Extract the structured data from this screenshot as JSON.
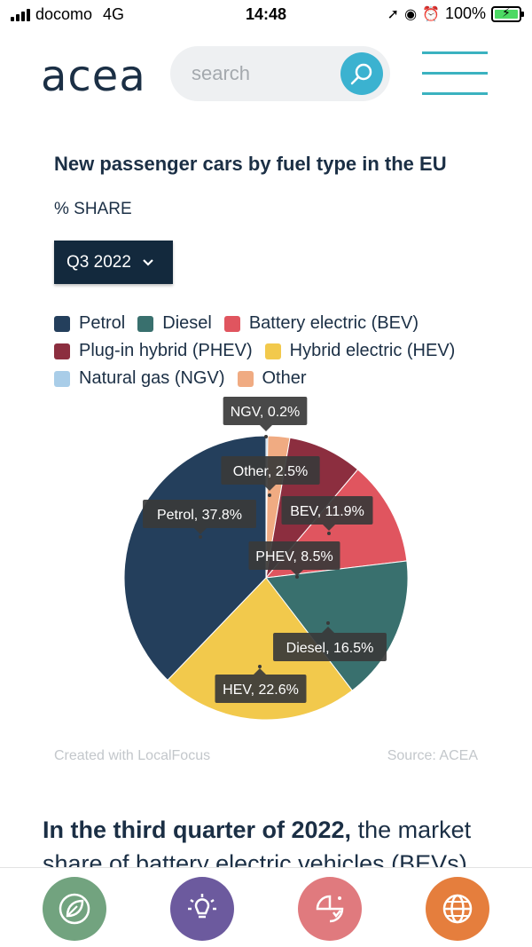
{
  "status_bar": {
    "carrier": "docomo",
    "network": "4G",
    "time": "14:48",
    "battery": "100%"
  },
  "header": {
    "logo": "acea",
    "search_placeholder": "search"
  },
  "chart_data": {
    "type": "pie",
    "title": "New passenger cars by fuel type in the EU",
    "subtitle": "% SHARE",
    "period": "Q3 2022",
    "slices": [
      {
        "name": "Petrol",
        "value": 37.8,
        "color": "#243f5c"
      },
      {
        "name": "Diesel",
        "value": 16.5,
        "color": "#39706e"
      },
      {
        "name": "Battery electric (BEV)",
        "value": 11.9,
        "color": "#e0555f"
      },
      {
        "name": "Plug-in hybrid (PHEV)",
        "value": 8.5,
        "color": "#8c2e3f"
      },
      {
        "name": "Hybrid electric (HEV)",
        "value": 22.6,
        "color": "#f2c94c"
      },
      {
        "name": "Natural gas (NGV)",
        "value": 0.2,
        "color": "#a9cde8"
      },
      {
        "name": "Other",
        "value": 2.5,
        "color": "#f0ab82"
      }
    ],
    "slice_order": [
      "NGV",
      "Other",
      "PHEV",
      "BEV",
      "Diesel",
      "HEV",
      "Petrol"
    ],
    "labels": [
      {
        "key": "NGV",
        "text": "NGV, 0.2%"
      },
      {
        "key": "Other",
        "text": "Other, 2.5%"
      },
      {
        "key": "BEV",
        "text": "BEV, 11.9%"
      },
      {
        "key": "Petrol",
        "text": "Petrol, 37.8%"
      },
      {
        "key": "PHEV",
        "text": "PHEV, 8.5%"
      },
      {
        "key": "Diesel",
        "text": "Diesel, 16.5%"
      },
      {
        "key": "HEV",
        "text": "HEV, 22.6%"
      }
    ],
    "legend_placement": "top"
  },
  "credit": "Created with LocalFocus",
  "source": "Source:  ACEA",
  "body": {
    "bold": "In the third quarter of 2022,",
    "rest": " the market share of battery electric vehicles (BEVs)"
  },
  "nav_colors": [
    "#72a37f",
    "#6c5a9e",
    "#e07a7e",
    "#e57e3d"
  ]
}
